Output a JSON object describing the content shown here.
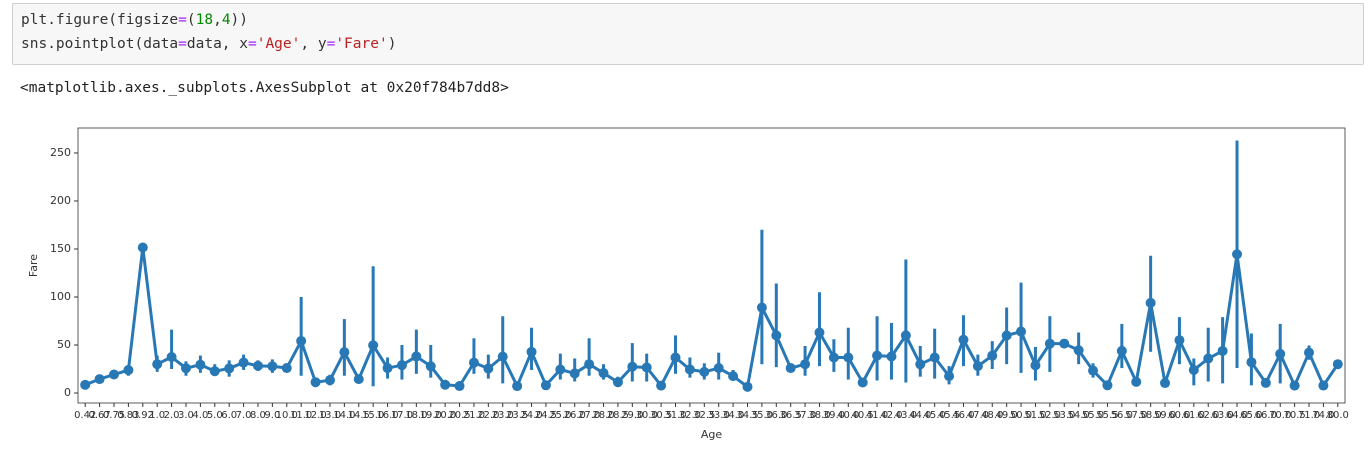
{
  "code": {
    "lines": [
      "plt.figure(figsize=(18,4))",
      "sns.pointplot(data=data, x='Age', y='Fare')"
    ]
  },
  "output": "<matplotlib.axes._subplots.AxesSubplot at 0x20f784b7dd8>",
  "chart_data": {
    "type": "pointplot",
    "x_label": "Age",
    "y_label": "Fare",
    "color": "#2878b5",
    "categories": [
      "0.42",
      "0.67",
      "0.75",
      "0.83",
      "0.92",
      "1.0",
      "2.0",
      "3.0",
      "4.0",
      "5.0",
      "6.0",
      "7.0",
      "8.0",
      "9.0",
      "10.0",
      "11.0",
      "12.0",
      "13.0",
      "14.0",
      "14.5",
      "15.0",
      "16.0",
      "17.0",
      "18.0",
      "19.0",
      "20.0",
      "20.5",
      "21.0",
      "22.0",
      "23.0",
      "23.5",
      "24.0",
      "24.5",
      "25.0",
      "26.0",
      "27.0",
      "28.0",
      "28.5",
      "29.0",
      "30.0",
      "30.5",
      "31.0",
      "32.0",
      "32.5",
      "33.0",
      "34.0",
      "34.5",
      "35.0",
      "36.0",
      "36.5",
      "37.0",
      "38.0",
      "39.0",
      "40.0",
      "40.5",
      "41.0",
      "42.0",
      "43.0",
      "44.0",
      "45.0",
      "45.5",
      "46.0",
      "47.0",
      "48.0",
      "49.0",
      "50.0",
      "51.0",
      "52.0",
      "53.0",
      "54.0",
      "55.0",
      "55.5",
      "56.0",
      "57.0",
      "58.0",
      "59.0",
      "60.0",
      "61.0",
      "62.0",
      "63.0",
      "64.0",
      "65.0",
      "66.0",
      "70.0",
      "70.5",
      "71.0",
      "74.0",
      "80.0"
    ],
    "values": [
      8.52,
      14.5,
      19.26,
      23.88,
      151.55,
      30,
      37.5,
      25.8,
      29.5,
      22.7,
      25.6,
      31.7,
      28.3,
      27.9,
      26,
      54.2,
      11.24,
      13.36,
      42.6,
      14.45,
      49.7,
      26,
      29,
      38.1,
      27.9,
      8.6,
      7.25,
      31.6,
      25.5,
      37.9,
      7.23,
      42.9,
      8.05,
      24.5,
      20.4,
      30,
      20.8,
      11.2,
      27.4,
      26.6,
      7.75,
      37,
      24.5,
      22,
      26,
      17.6,
      6.44,
      89,
      60,
      26,
      30,
      63,
      37,
      37,
      11,
      39,
      38,
      60,
      29.9,
      37,
      17.6,
      55.5,
      28,
      38.9,
      59.9,
      64,
      28.8,
      51.4,
      51.5,
      44.5,
      23.3,
      8.05,
      43.9,
      11.6,
      93.9,
      10.4,
      55,
      24,
      35.9,
      43.8,
      144.5,
      32.1,
      10.5,
      40.75,
      7.75,
      42.1,
      7.78,
      30
    ],
    "ci_low": [
      8.52,
      14.5,
      19.26,
      18,
      151.55,
      22,
      25,
      18,
      21,
      19,
      17,
      24,
      23,
      21,
      24,
      18,
      11.24,
      8,
      18,
      14.45,
      7,
      15,
      14,
      20,
      16,
      7,
      7.25,
      20,
      15,
      10,
      7.23,
      24,
      8.05,
      14,
      12,
      18,
      14,
      7,
      12,
      12,
      7.75,
      20,
      16,
      14,
      14,
      13,
      6.44,
      30,
      27,
      26,
      18,
      28,
      22,
      14,
      7,
      13,
      14,
      11,
      17,
      15,
      9,
      28,
      18,
      25,
      30,
      21,
      13,
      22,
      51.5,
      30,
      16,
      8.05,
      26,
      10.5,
      43,
      7,
      30,
      8,
      12,
      10,
      26,
      8,
      10.5,
      10,
      7.75,
      34.65,
      7.78,
      30
    ],
    "ci_high": [
      8.52,
      14.5,
      19.26,
      29,
      151.55,
      39,
      66,
      33,
      39,
      30,
      34,
      40,
      34,
      35,
      28,
      100,
      11.24,
      19,
      77,
      14.45,
      132,
      37,
      50,
      66,
      50,
      10,
      7.25,
      57,
      40,
      80,
      7.23,
      68,
      8.05,
      41,
      36,
      57,
      30,
      17,
      52,
      41,
      7.75,
      60,
      37,
      31,
      42,
      24,
      6.44,
      170,
      114,
      26,
      49,
      105,
      56,
      68,
      15,
      80,
      73,
      139,
      49,
      67,
      28,
      81,
      40,
      54,
      89,
      115,
      48,
      80,
      51.5,
      63,
      31,
      8.05,
      72,
      13,
      143,
      14,
      79,
      36,
      68,
      79,
      263,
      62,
      10.5,
      72,
      7.75,
      49.5,
      7.78,
      30
    ],
    "ylim": [
      -10.4,
      276
    ],
    "yticks": [
      0,
      50,
      100,
      150,
      200,
      250
    ]
  }
}
